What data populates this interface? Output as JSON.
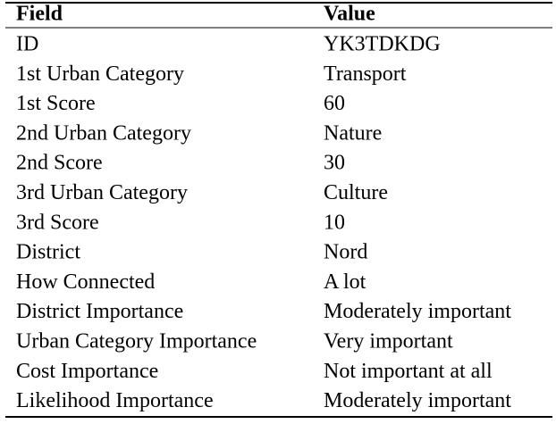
{
  "table": {
    "header": [
      "Field",
      "Value"
    ],
    "rows": [
      [
        "ID",
        "YK3TDKDG"
      ],
      [
        "1st Urban Category",
        "Transport"
      ],
      [
        "1st Score",
        60
      ],
      [
        "2nd Urban Category",
        "Nature"
      ],
      [
        "2nd Score",
        30
      ],
      [
        "3rd Urban Category",
        "Culture"
      ],
      [
        "3rd Score",
        10
      ],
      [
        "District",
        "Nord"
      ],
      [
        "How Connected",
        "A lot"
      ],
      [
        "District Importance",
        "Moderately important"
      ],
      [
        "Urban Category Importance",
        "Very important"
      ],
      [
        "Cost Importance",
        "Not important at all"
      ],
      [
        "Likelihood Importance",
        "Moderately important"
      ]
    ]
  }
}
